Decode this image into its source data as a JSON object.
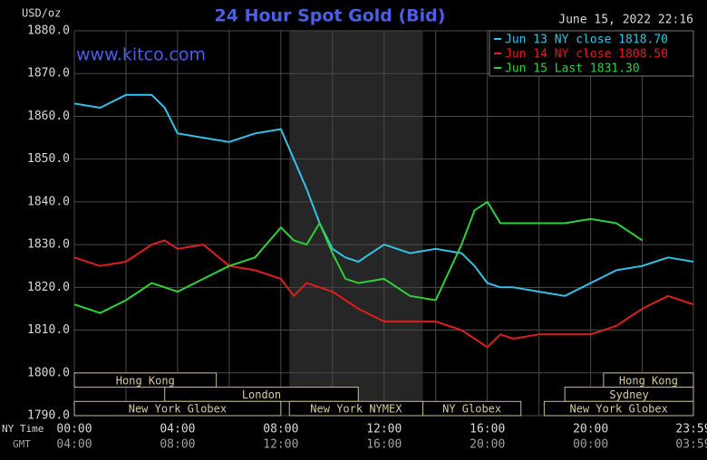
{
  "chart_data": {
    "type": "line",
    "title": "24 Hour Spot Gold (Bid)",
    "timestamp": "June 15, 2022 22:16",
    "watermark": "www.kitco.com",
    "y_unit": "USD/oz",
    "x_row_label": "NY Time",
    "x2_row_label": "GMT",
    "x": [
      0,
      1,
      2,
      3,
      3.5,
      4,
      5,
      6,
      7,
      8,
      8.5,
      9,
      9.5,
      10,
      10.5,
      11,
      12,
      13,
      14,
      15,
      15.5,
      16,
      16.5,
      17,
      18,
      19,
      20,
      21,
      22,
      23,
      23.98
    ],
    "series": [
      {
        "name": "Jun 13 NY close 1818.70",
        "color": "#33c3e8",
        "values": [
          1863,
          1862,
          1865,
          1865,
          1862,
          1856,
          1855,
          1854,
          1856,
          1857,
          1850,
          1843,
          1835,
          1829,
          1827,
          1826,
          1830,
          1828,
          1829,
          1828,
          1825,
          1821,
          1820,
          1820,
          1819,
          1818,
          1821,
          1824,
          1825,
          1827,
          1826
        ]
      },
      {
        "name": "Jun 14 NY close 1808.50",
        "color": "#e01e1e",
        "values": [
          1827,
          1825,
          1826,
          1830,
          1831,
          1829,
          1830,
          1825,
          1824,
          1822,
          1818,
          1821,
          1820,
          1819,
          1817,
          1815,
          1812,
          1812,
          1812,
          1810,
          1808,
          1806,
          1809,
          1808,
          1809,
          1809,
          1809,
          1811,
          1815,
          1818,
          1816
        ]
      },
      {
        "name": "Jun 15 Last 1831.30",
        "color": "#2fd13a",
        "values": [
          1816,
          1814,
          1817,
          1821,
          1820,
          1819,
          1822,
          1825,
          1827,
          1834,
          1831,
          1830,
          1835,
          1828,
          1822,
          1821,
          1822,
          1818,
          1817,
          1830,
          1838,
          1840,
          1835,
          1835,
          1835,
          1835,
          1836,
          1835,
          1831,
          null,
          null
        ]
      }
    ],
    "xlim": [
      0,
      23.98
    ],
    "xticks": [
      {
        "value": 0,
        "label": "00:00"
      },
      {
        "value": 4,
        "label": "04:00"
      },
      {
        "value": 8,
        "label": "08:00"
      },
      {
        "value": 12,
        "label": "12:00"
      },
      {
        "value": 16,
        "label": "16:00"
      },
      {
        "value": 20,
        "label": "20:00"
      },
      {
        "value": 23.98,
        "label": "23:59"
      }
    ],
    "x2ticks": [
      "04:00",
      "08:00",
      "12:00",
      "16:00",
      "20:00",
      "00:00",
      "03:59"
    ],
    "x_minor_grid": [
      2,
      6,
      10,
      14,
      18,
      22
    ],
    "ylim": [
      1790,
      1880
    ],
    "yticks": [
      {
        "value": 1790,
        "label": "1790.0"
      },
      {
        "value": 1800,
        "label": "1800.0"
      },
      {
        "value": 1810,
        "label": "1810.0"
      },
      {
        "value": 1820,
        "label": "1820.0"
      },
      {
        "value": 1830,
        "label": "1830.0"
      },
      {
        "value": 1840,
        "label": "1840.0"
      },
      {
        "value": 1850,
        "label": "1850.0"
      },
      {
        "value": 1860,
        "label": "1860.0"
      },
      {
        "value": 1870,
        "label": "1870.0"
      },
      {
        "value": 1880,
        "label": "1880.0"
      }
    ],
    "grid": true,
    "legend": "top-right",
    "shaded_range": [
      8.33,
      13.5
    ],
    "sessions": [
      {
        "name": "Hong Kong",
        "start": 0,
        "end": 5.5,
        "row": 0
      },
      {
        "name": "Hong Kong",
        "start": 20.5,
        "end": 23.98,
        "row": 0
      },
      {
        "name": "London",
        "start": 3.5,
        "end": 11,
        "row": 1
      },
      {
        "name": "Sydney",
        "start": 19,
        "end": 23.98,
        "row": 1
      },
      {
        "name": "New York Globex",
        "start": 0,
        "end": 8,
        "row": 2
      },
      {
        "name": "New York NYMEX",
        "start": 8.33,
        "end": 13.5,
        "row": 2
      },
      {
        "name": "NY Globex",
        "start": 13.5,
        "end": 17.3,
        "row": 2
      },
      {
        "name": "New York Globex",
        "start": 18.2,
        "end": 23.98,
        "row": 2
      }
    ]
  }
}
